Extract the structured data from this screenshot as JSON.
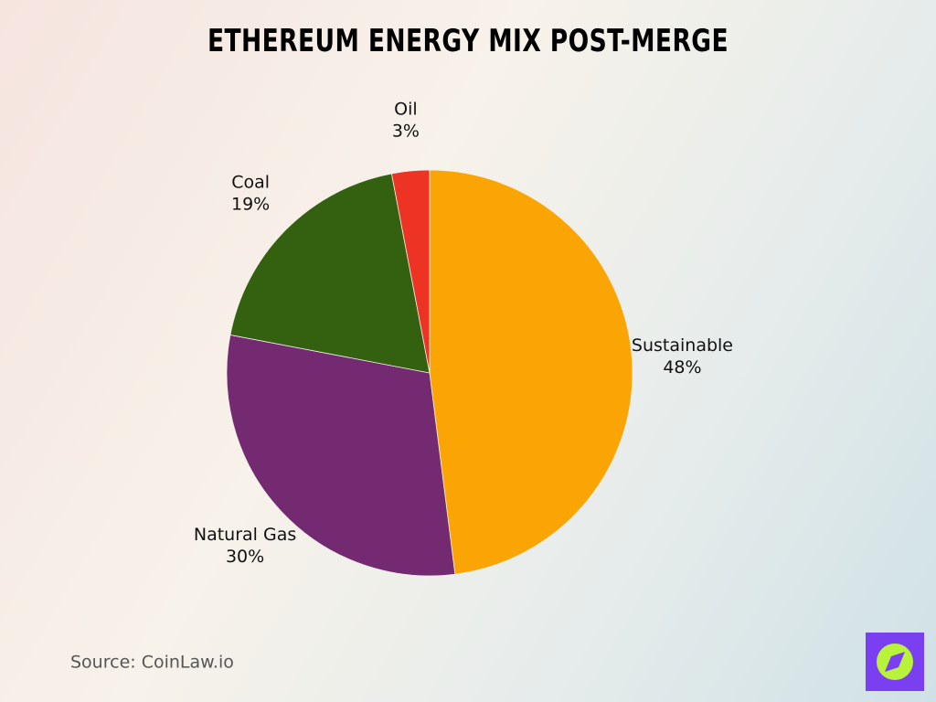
{
  "chart_data": {
    "type": "pie",
    "title": "Ethereum Energy Mix Post-Merge",
    "categories": [
      "Sustainable",
      "Natural Gas",
      "Coal",
      "Oil"
    ],
    "values": [
      48,
      30,
      19,
      3
    ],
    "value_labels": [
      "48%",
      "30%",
      "19%",
      "3%"
    ],
    "colors": [
      "#fba504",
      "#732a70",
      "#336110",
      "#ec3324"
    ],
    "source": "Source: CoinLaw.io"
  }
}
